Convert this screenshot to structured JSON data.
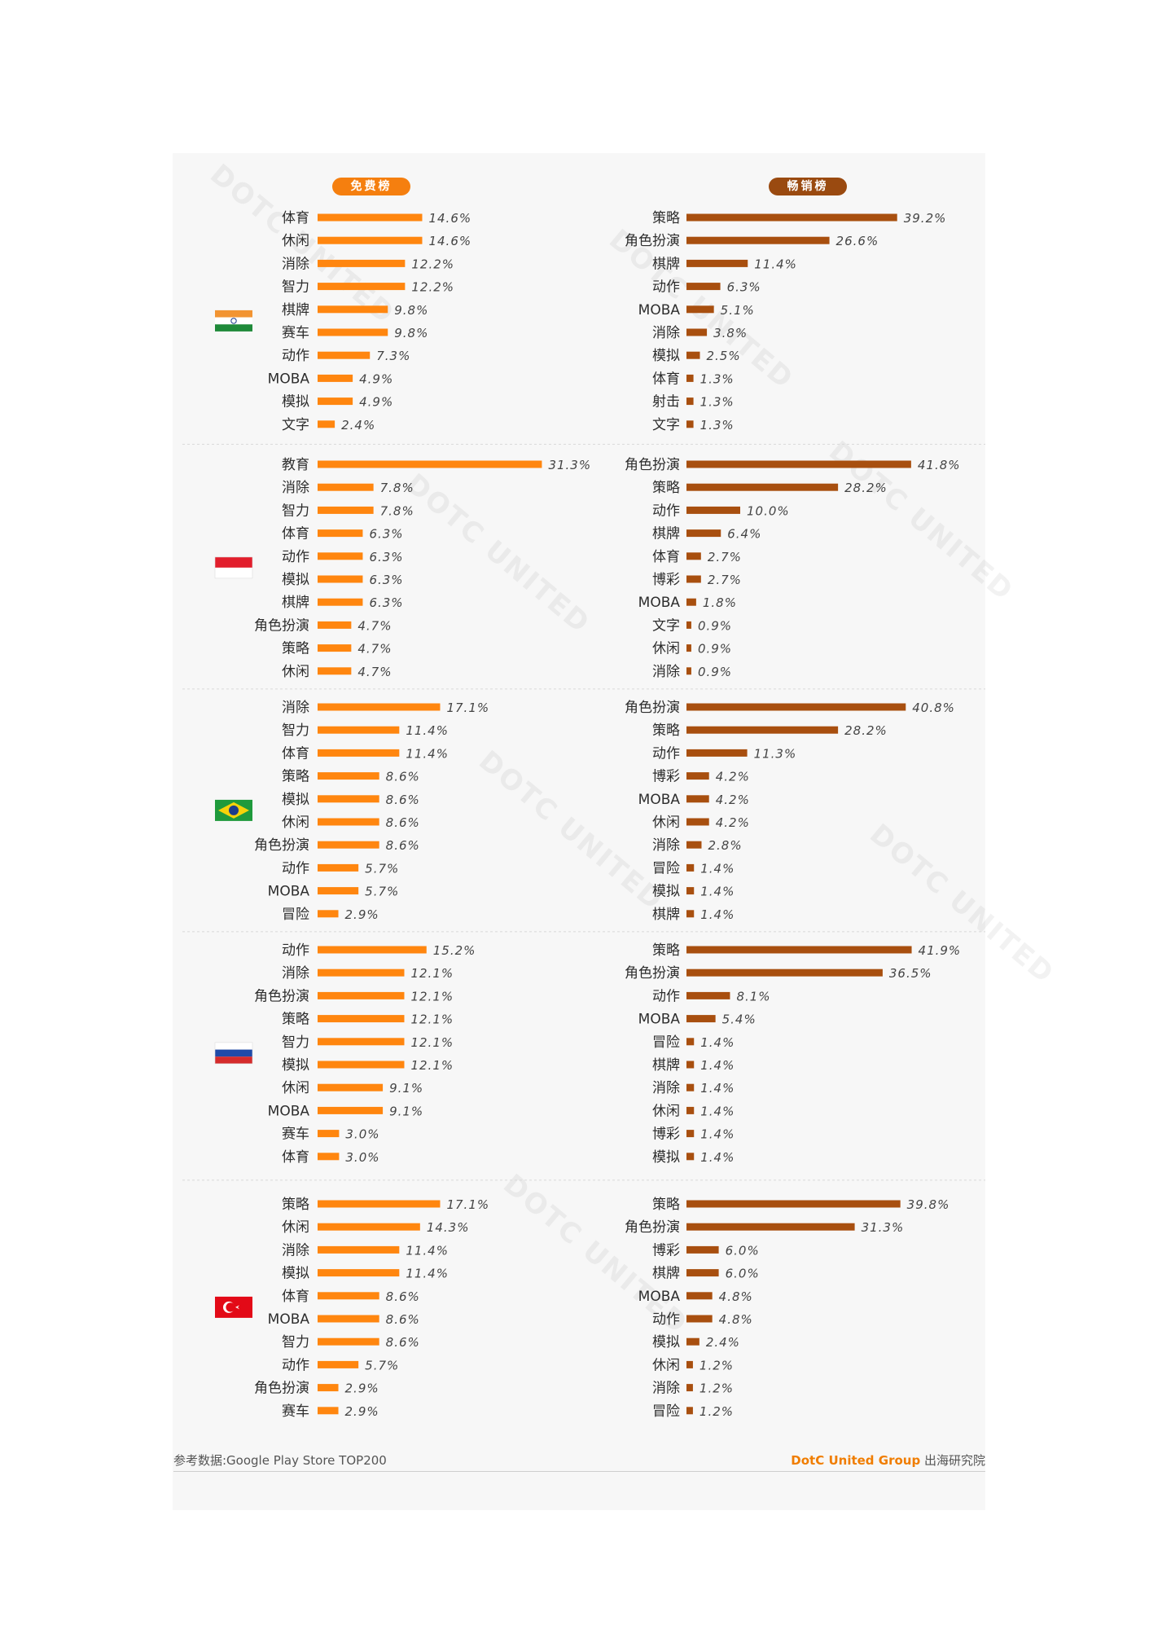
{
  "headers": {
    "free": "免费榜",
    "grossing": "畅销榜"
  },
  "colors": {
    "free": "#ff860f",
    "grossing": "#a84f0f",
    "pill_free": "#f57f0f",
    "pill_grossing": "#9a4a10"
  },
  "footer": {
    "source": "参考数据:Google Play Store TOP200",
    "brand": "DotC United Group",
    "suffix": "出海研究院"
  },
  "watermark": "DOTC UNITED",
  "chart_data": {
    "type": "bar",
    "orientation": "horizontal",
    "unit": "%",
    "groups": [
      {
        "flag": "india",
        "free": {
          "categories": [
            "体育",
            "休闲",
            "消除",
            "智力",
            "棋牌",
            "赛车",
            "动作",
            "MOBA",
            "模拟",
            "文字"
          ],
          "values": [
            14.6,
            14.6,
            12.2,
            12.2,
            9.8,
            9.8,
            7.3,
            4.9,
            4.9,
            2.4
          ],
          "labels": [
            "14.6%",
            "14.6%",
            "12.2%",
            "12.2%",
            "9.8%",
            "9.8%",
            "7.3%",
            "4.9%",
            "4.9%",
            "2.4%"
          ]
        },
        "grossing": {
          "categories": [
            "策略",
            "角色扮演",
            "棋牌",
            "动作",
            "MOBA",
            "消除",
            "模拟",
            "体育",
            "射击",
            "文字"
          ],
          "values": [
            39.2,
            26.6,
            11.4,
            6.3,
            5.1,
            3.8,
            2.5,
            1.3,
            1.3,
            1.3
          ],
          "labels": [
            "39.2%",
            "26.6%",
            "11.4%",
            "6.3%",
            "5.1%",
            "3.8%",
            "2.5%",
            "1.3%",
            "1.3%",
            "1.3%"
          ]
        }
      },
      {
        "flag": "indonesia",
        "free": {
          "categories": [
            "教育",
            "消除",
            "智力",
            "体育",
            "动作",
            "模拟",
            "棋牌",
            "角色扮演",
            "策略",
            "休闲"
          ],
          "values": [
            31.3,
            7.8,
            7.8,
            6.3,
            6.3,
            6.3,
            6.3,
            4.7,
            4.7,
            4.7
          ],
          "labels": [
            "31.3%",
            "7.8%",
            "7.8%",
            "6.3%",
            "6.3%",
            "6.3%",
            "6.3%",
            "4.7%",
            "4.7%",
            "4.7%"
          ]
        },
        "grossing": {
          "categories": [
            "角色扮演",
            "策略",
            "动作",
            "棋牌",
            "体育",
            "博彩",
            "MOBA",
            "文字",
            "休闲",
            "消除"
          ],
          "values": [
            41.8,
            28.2,
            10.0,
            6.4,
            2.7,
            2.7,
            1.8,
            0.9,
            0.9,
            0.9
          ],
          "labels": [
            "41.8%",
            "28.2%",
            "10.0%",
            "6.4%",
            "2.7%",
            "2.7%",
            "1.8%",
            "0.9%",
            "0.9%",
            "0.9%"
          ]
        }
      },
      {
        "flag": "brazil",
        "free": {
          "categories": [
            "消除",
            "智力",
            "体育",
            "策略",
            "模拟",
            "休闲",
            "角色扮演",
            "动作",
            "MOBA",
            "冒险"
          ],
          "values": [
            17.1,
            11.4,
            11.4,
            8.6,
            8.6,
            8.6,
            8.6,
            5.7,
            5.7,
            2.9
          ],
          "labels": [
            "17.1%",
            "11.4%",
            "11.4%",
            "8.6%",
            "8.6%",
            "8.6%",
            "8.6%",
            "5.7%",
            "5.7%",
            "2.9%"
          ]
        },
        "grossing": {
          "categories": [
            "角色扮演",
            "策略",
            "动作",
            "博彩",
            "MOBA",
            "休闲",
            "消除",
            "冒险",
            "模拟",
            "棋牌"
          ],
          "values": [
            40.8,
            28.2,
            11.3,
            4.2,
            4.2,
            4.2,
            2.8,
            1.4,
            1.4,
            1.4
          ],
          "labels": [
            "40.8%",
            "28.2%",
            "11.3%",
            "4.2%",
            "4.2%",
            "4.2%",
            "2.8%",
            "1.4%",
            "1.4%",
            "1.4%"
          ]
        }
      },
      {
        "flag": "russia",
        "free": {
          "categories": [
            "动作",
            "消除",
            "角色扮演",
            "策略",
            "智力",
            "模拟",
            "休闲",
            "MOBA",
            "赛车",
            "体育"
          ],
          "values": [
            15.2,
            12.1,
            12.1,
            12.1,
            12.1,
            12.1,
            9.1,
            9.1,
            3.0,
            3.0
          ],
          "labels": [
            "15.2%",
            "12.1%",
            "12.1%",
            "12.1%",
            "12.1%",
            "12.1%",
            "9.1%",
            "9.1%",
            "3.0%",
            "3.0%"
          ]
        },
        "grossing": {
          "categories": [
            "策略",
            "角色扮演",
            "动作",
            "MOBA",
            "冒险",
            "棋牌",
            "消除",
            "休闲",
            "博彩",
            "模拟"
          ],
          "values": [
            41.9,
            36.5,
            8.1,
            5.4,
            1.4,
            1.4,
            1.4,
            1.4,
            1.4,
            1.4
          ],
          "labels": [
            "41.9%",
            "36.5%",
            "8.1%",
            "5.4%",
            "1.4%",
            "1.4%",
            "1.4%",
            "1.4%",
            "1.4%",
            "1.4%"
          ]
        }
      },
      {
        "flag": "turkey",
        "free": {
          "categories": [
            "策略",
            "休闲",
            "消除",
            "模拟",
            "体育",
            "MOBA",
            "智力",
            "动作",
            "角色扮演",
            "赛车"
          ],
          "values": [
            17.1,
            14.3,
            11.4,
            11.4,
            8.6,
            8.6,
            8.6,
            5.7,
            2.9,
            2.9
          ],
          "labels": [
            "17.1%",
            "14.3%",
            "11.4%",
            "11.4%",
            "8.6%",
            "8.6%",
            "8.6%",
            "5.7%",
            "2.9%",
            "2.9%"
          ]
        },
        "grossing": {
          "categories": [
            "策略",
            "角色扮演",
            "博彩",
            "棋牌",
            "MOBA",
            "动作",
            "模拟",
            "休闲",
            "消除",
            "冒险"
          ],
          "values": [
            39.8,
            31.3,
            6.0,
            6.0,
            4.8,
            4.8,
            2.4,
            1.2,
            1.2,
            1.2
          ],
          "labels": [
            "39.8%",
            "31.3%",
            "6.0%",
            "6.0%",
            "4.8%",
            "4.8%",
            "2.4%",
            "1.2%",
            "1.2%",
            "1.2%"
          ]
        }
      }
    ]
  }
}
